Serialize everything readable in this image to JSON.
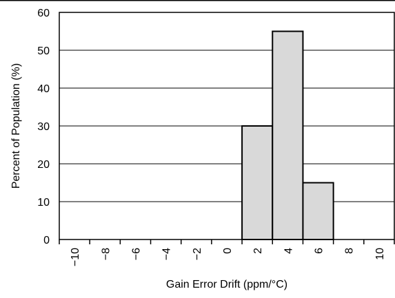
{
  "chart_data": {
    "type": "bar",
    "title": "",
    "xlabel": "Gain Error Drift (ppm/°C)",
    "ylabel": "Percent of Population (%)",
    "xlim": [
      -11,
      11
    ],
    "ylim": [
      0,
      60
    ],
    "x_ticks": [
      -10,
      -8,
      -6,
      -4,
      -2,
      0,
      2,
      4,
      6,
      8,
      10
    ],
    "x_tick_labels": [
      "−10",
      "−8",
      "−6",
      "−4",
      "−2",
      "0",
      "2",
      "4",
      "6",
      "8",
      "10"
    ],
    "y_ticks": [
      0,
      10,
      20,
      30,
      40,
      50,
      60
    ],
    "y_tick_labels": [
      "0",
      "10",
      "20",
      "30",
      "40",
      "50",
      "60"
    ],
    "bins": [
      {
        "from": 1,
        "to": 3,
        "value": 30
      },
      {
        "from": 3,
        "to": 5,
        "value": 55
      },
      {
        "from": 5,
        "to": 7,
        "value": 15
      }
    ],
    "grid": "horizontal",
    "bar_color": "#d9d9d9",
    "bar_edge_color": "#000000"
  }
}
